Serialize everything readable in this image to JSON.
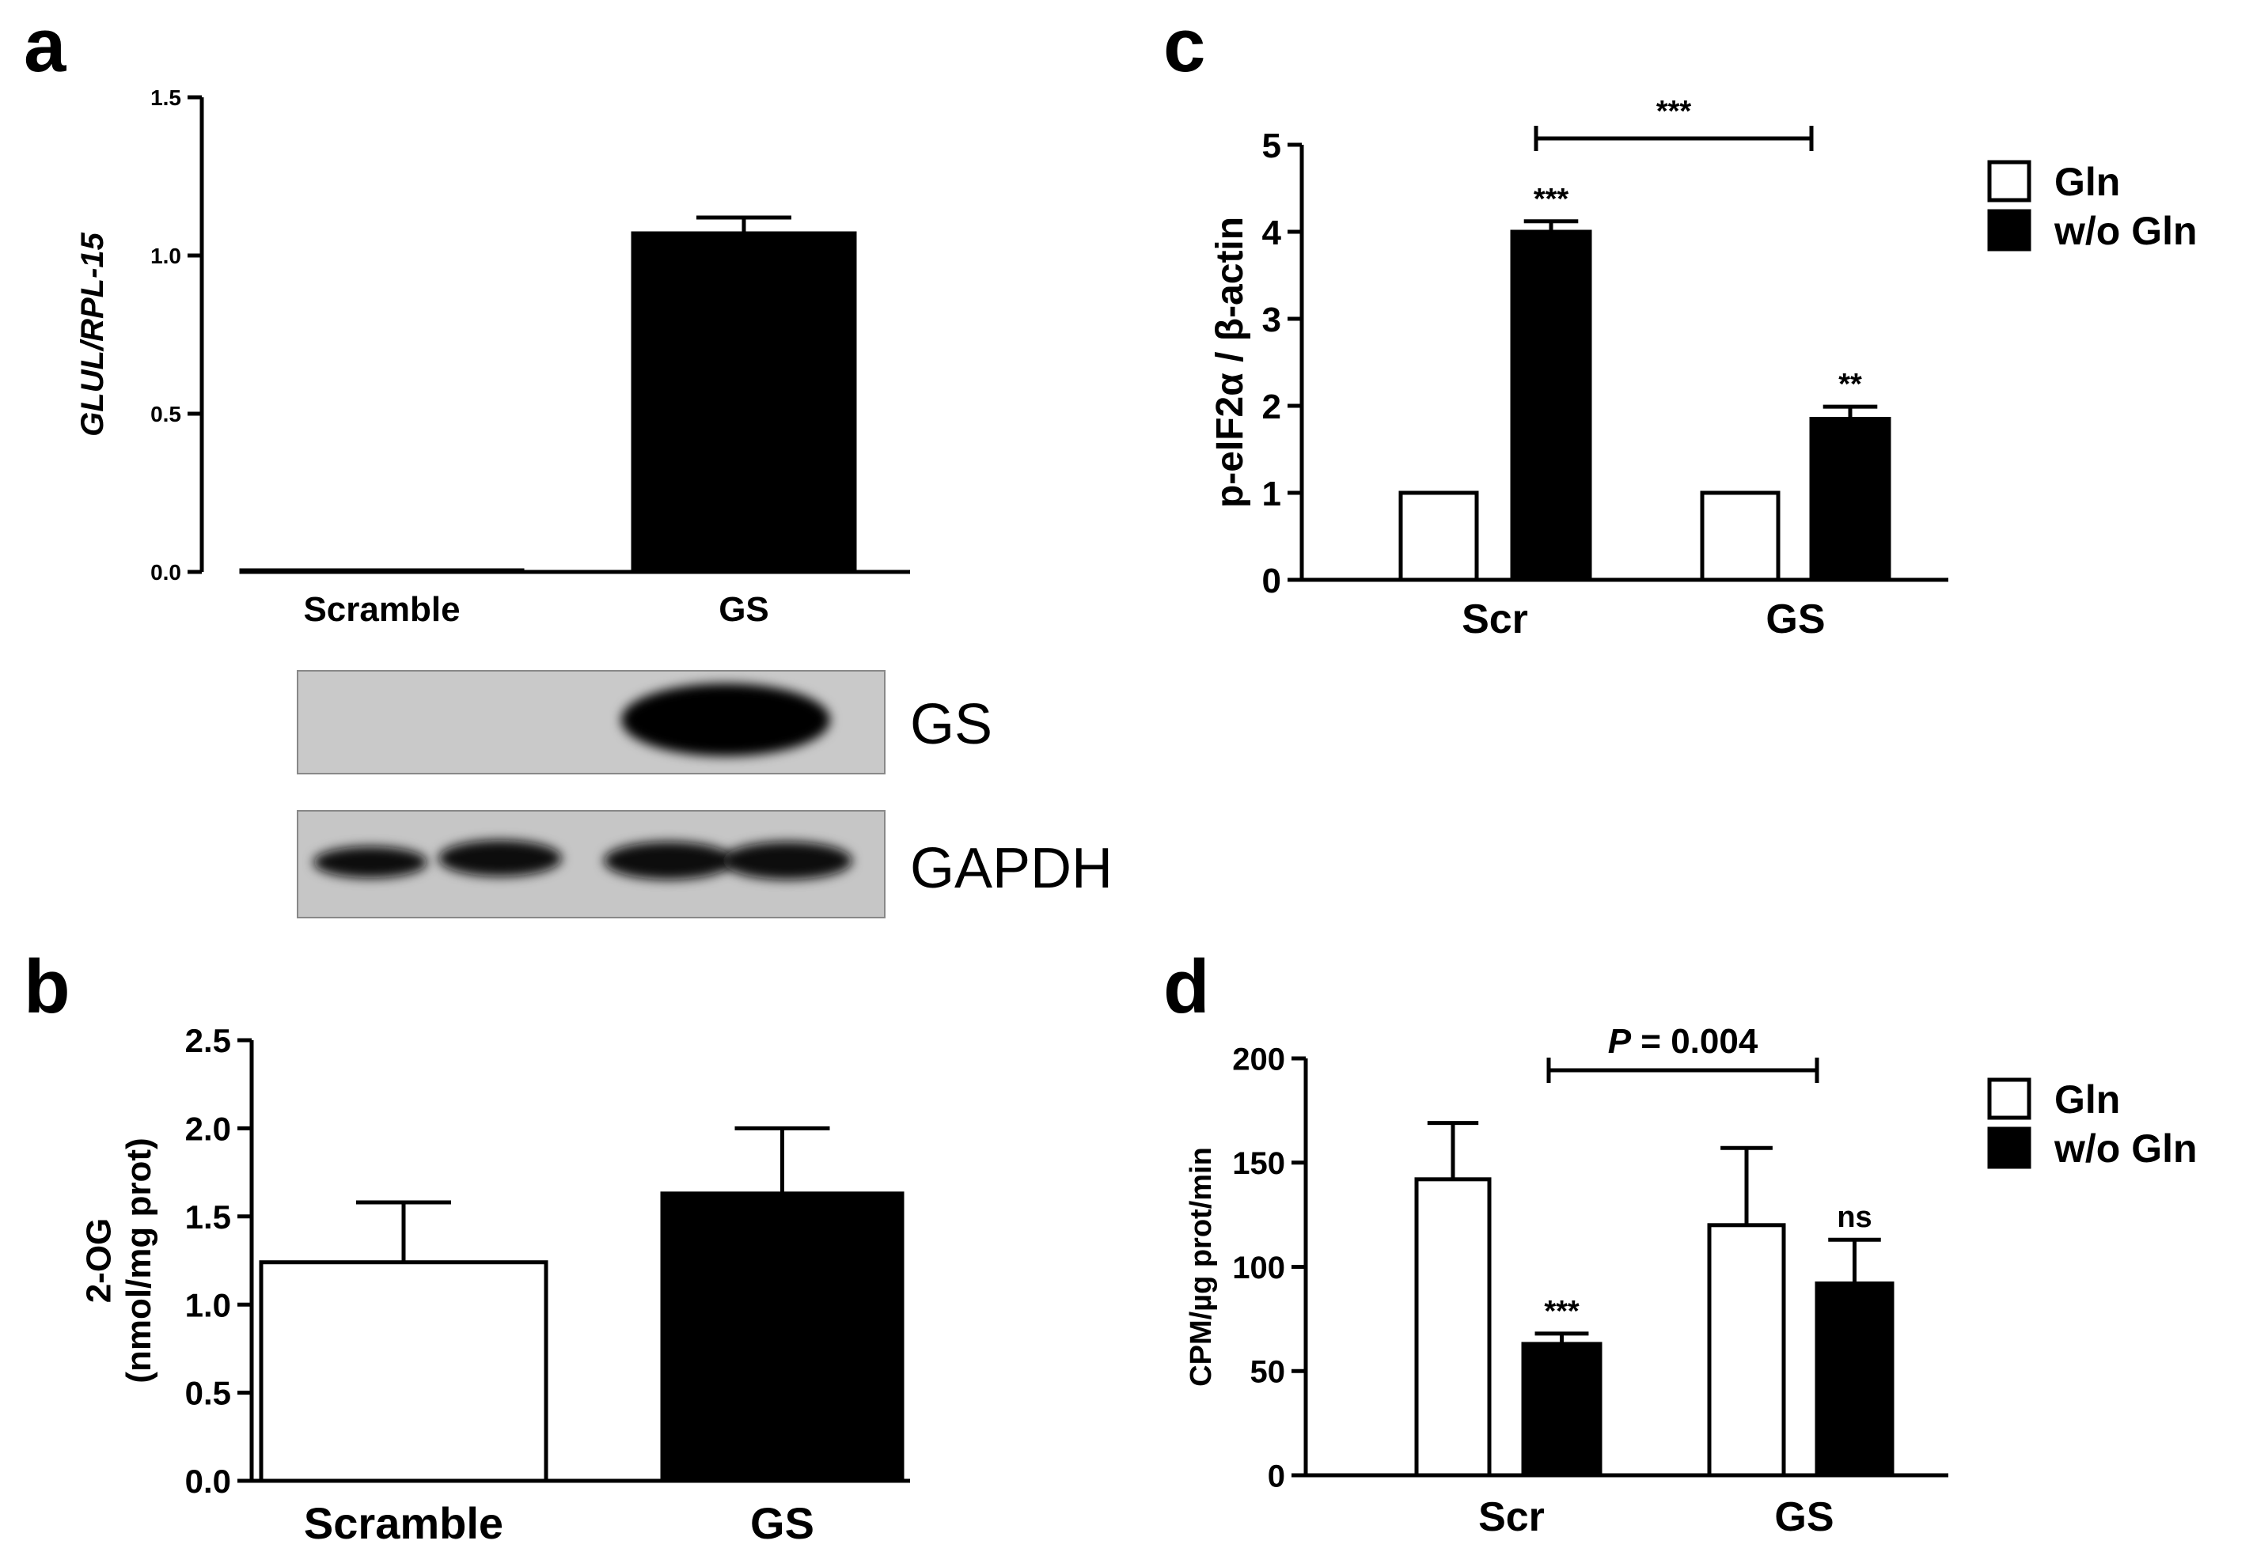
{
  "panels": {
    "a": {
      "letter": "a"
    },
    "b": {
      "letter": "b"
    },
    "c": {
      "letter": "c"
    },
    "d": {
      "letter": "d"
    }
  },
  "blot": {
    "top_label": "GS",
    "bottom_label": "GAPDH"
  },
  "chart_data": [
    {
      "panel": "a",
      "type": "bar",
      "ylabel": "GLUL/RPL-15",
      "ylim": [
        0,
        1.5
      ],
      "yticks": [
        "0.0",
        "0.5",
        "1.0",
        "1.5"
      ],
      "categories": [
        "Scramble",
        "GS"
      ],
      "values": [
        0.005,
        1.07
      ],
      "errors": [
        0.0,
        0.05
      ],
      "colors": [
        "#ffffff",
        "#000000"
      ]
    },
    {
      "panel": "b",
      "type": "bar",
      "ylabel": "2-OG (nmol/mg prot)",
      "ylabel_lines": [
        "2-OG",
        "(nmol/mg prot)"
      ],
      "ylim": [
        0,
        2.5
      ],
      "yticks": [
        "0.0",
        "0.5",
        "1.0",
        "1.5",
        "2.0",
        "2.5"
      ],
      "categories": [
        "Scramble",
        "GS"
      ],
      "values": [
        1.24,
        1.63
      ],
      "errors": [
        0.34,
        0.37
      ],
      "colors": [
        "#ffffff",
        "#000000"
      ]
    },
    {
      "panel": "c",
      "type": "bar",
      "ylabel": "p-eIF2α / β-actin",
      "ylim": [
        0,
        5
      ],
      "yticks": [
        "0",
        "1",
        "2",
        "3",
        "4",
        "5"
      ],
      "categories": [
        "Scr",
        "GS"
      ],
      "series": [
        {
          "name": "Gln",
          "color": "#ffffff",
          "values": [
            1.0,
            1.0
          ],
          "errors": [
            0,
            0
          ],
          "annotations": [
            "",
            ""
          ]
        },
        {
          "name": "w/o Gln",
          "color": "#000000",
          "values": [
            4.0,
            1.85
          ],
          "errors": [
            0.12,
            0.14
          ],
          "annotations": [
            "***",
            "**"
          ]
        }
      ],
      "comparison": {
        "label": "***"
      },
      "legend": "top-right"
    },
    {
      "panel": "d",
      "type": "bar",
      "ylabel": "CPM/µg prot/min",
      "ylim": [
        0,
        200
      ],
      "yticks": [
        "0",
        "50",
        "100",
        "150",
        "200"
      ],
      "categories": [
        "Scr",
        "GS"
      ],
      "series": [
        {
          "name": "Gln",
          "color": "#ffffff",
          "values": [
            142,
            120
          ],
          "errors": [
            27,
            37
          ],
          "annotations": [
            "",
            ""
          ]
        },
        {
          "name": "w/o Gln",
          "color": "#000000",
          "values": [
            63,
            92
          ],
          "errors": [
            5,
            21
          ],
          "annotations": [
            "***",
            "ns"
          ]
        }
      ],
      "comparison": {
        "label": "P = 0.004"
      },
      "legend": "top-right"
    }
  ]
}
